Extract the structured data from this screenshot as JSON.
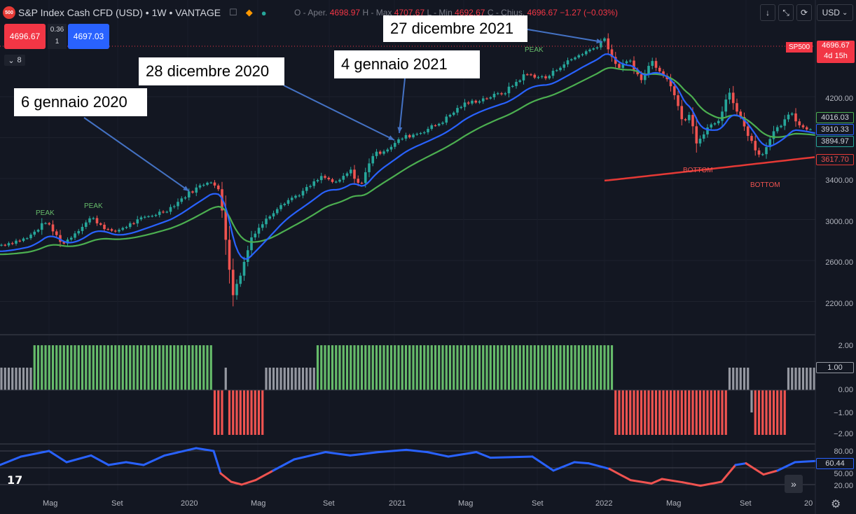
{
  "header": {
    "logo_text": "500",
    "symbol": "S&P Index Cash CFD (USD) • 1W • VANTAGE",
    "ohlc": {
      "open_label": "O - Aper.",
      "open": "4698.97",
      "high_label": "H - Max",
      "high": "4707.67",
      "low_label": "L - Min",
      "low": "4692.67",
      "close_label": "C - Chius.",
      "close": "4696.67",
      "change": "−1.27 (−0.03%)"
    }
  },
  "trade": {
    "sell": "4696.67",
    "spread_top": "0.36",
    "spread_bottom": "1",
    "buy": "4697.03"
  },
  "indicators_button": "8",
  "top_right": {
    "currency": "USD"
  },
  "callouts": [
    {
      "text": "6 gennaio 2020"
    },
    {
      "text": "28 dicembre 2020"
    },
    {
      "text": "4 gennaio 2021"
    },
    {
      "text": "27 dicembre 2021"
    }
  ],
  "chart_annotations": {
    "peak1": "PEAK",
    "peak2": "PEAK",
    "peak3": "PEAK",
    "bottom1": "BOTTOM",
    "bottom2": "BOTTOM",
    "sp500_tag": "SP500"
  },
  "price_axis": {
    "labels": [
      "4200.00",
      "3400.00",
      "3000.00",
      "2600.00",
      "2200.00"
    ],
    "last_price": "4696.67",
    "countdown": "4d 15h",
    "ma_green": "4016.03",
    "ma_blue": "3910.33",
    "ma_teal": "3894.97",
    "ma_red": "3617.70"
  },
  "osc1_axis": {
    "labels": [
      "2.00",
      "0.00",
      "−1.00",
      "−2.00"
    ],
    "current": "1.00"
  },
  "osc2_axis": {
    "labels": [
      "80.00",
      "50.00",
      "20.00"
    ],
    "current": "60.44"
  },
  "time_axis": {
    "labels": [
      "Mag",
      "Set",
      "2020",
      "Mag",
      "Set",
      "2021",
      "Mag",
      "Set",
      "2022",
      "Mag",
      "Set",
      "20"
    ]
  },
  "colors": {
    "background": "#131722",
    "up": "#26a69a",
    "down": "#ef5350",
    "ma_blue": "#2962ff",
    "ma_green": "#4caf50",
    "ma_red": "#e53935",
    "hist_green": "#66bb6a",
    "hist_red": "#ef5350",
    "hist_gray": "#9598a1"
  },
  "chart_data": {
    "type": "candlestick",
    "ylim": [
      2000,
      4900
    ],
    "key_points": [
      {
        "x": "2019-01",
        "y": 2700
      },
      {
        "x": "2020-01-06",
        "y": 3300
      },
      {
        "x": "2020-02",
        "y": 3380
      },
      {
        "x": "2020-03",
        "y": 2200
      },
      {
        "x": "2020-12-28",
        "y": 3760
      },
      {
        "x": "2021-01-04",
        "y": 3800
      },
      {
        "x": "2021-12-27",
        "y": 4790
      },
      {
        "x": "2022-06",
        "y": 3650
      },
      {
        "x": "2022-08",
        "y": 4300
      },
      {
        "x": "2022-10",
        "y": 3580
      },
      {
        "x": "2022-12",
        "y": 4100
      }
    ]
  }
}
